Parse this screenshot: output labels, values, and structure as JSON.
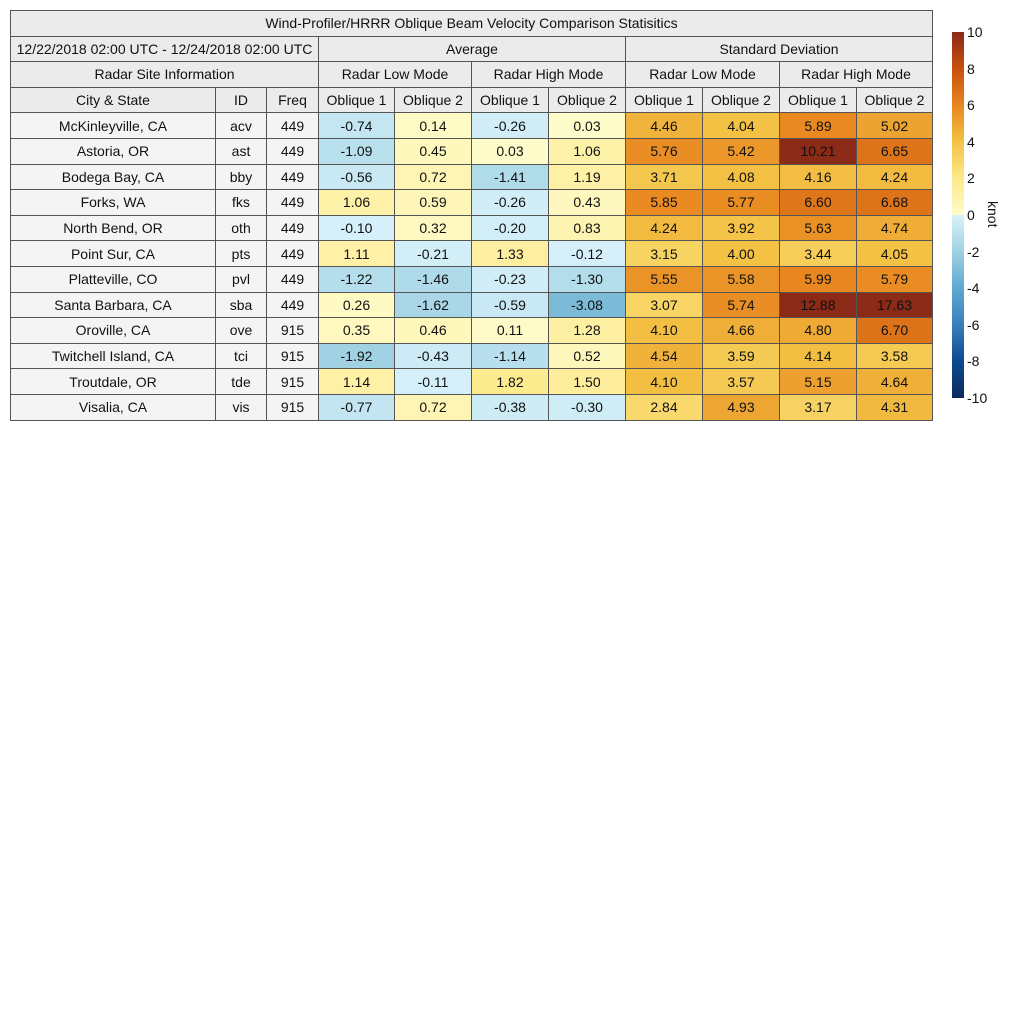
{
  "chart_data": {
    "type": "table",
    "title": "Wind-Profiler/HRRR Oblique Beam Velocity Comparison Statisitics",
    "date_range": "12/22/2018 02:00 UTC - 12/24/2018 02:00 UTC",
    "group_headers": {
      "info": "Radar Site Information",
      "average": "Average",
      "std": "Standard Deviation"
    },
    "mode_headers": [
      "Radar Low Mode",
      "Radar High Mode",
      "Radar Low Mode",
      "Radar High Mode"
    ],
    "columns": [
      "City & State",
      "ID",
      "Freq",
      "Oblique 1",
      "Oblique 2",
      "Oblique 1",
      "Oblique 2",
      "Oblique 1",
      "Oblique 2",
      "Oblique 1",
      "Oblique 2"
    ],
    "rows": [
      [
        "McKinleyville, CA",
        "acv",
        "449",
        -0.74,
        0.14,
        -0.26,
        0.03,
        4.46,
        4.04,
        5.89,
        5.02
      ],
      [
        "Astoria, OR",
        "ast",
        "449",
        -1.09,
        0.45,
        0.03,
        1.06,
        5.76,
        5.42,
        10.21,
        6.65
      ],
      [
        "Bodega Bay, CA",
        "bby",
        "449",
        -0.56,
        0.72,
        -1.41,
        1.19,
        3.71,
        4.08,
        4.16,
        4.24
      ],
      [
        "Forks, WA",
        "fks",
        "449",
        1.06,
        0.59,
        -0.26,
        0.43,
        5.85,
        5.77,
        6.6,
        6.68
      ],
      [
        "North Bend, OR",
        "oth",
        "449",
        -0.1,
        0.32,
        -0.2,
        0.83,
        4.24,
        3.92,
        5.63,
        4.74
      ],
      [
        "Point Sur, CA",
        "pts",
        "449",
        1.11,
        -0.21,
        1.33,
        -0.12,
        3.15,
        4.0,
        3.44,
        4.05
      ],
      [
        "Platteville, CO",
        "pvl",
        "449",
        -1.22,
        -1.46,
        -0.23,
        -1.3,
        5.55,
        5.58,
        5.99,
        5.79
      ],
      [
        "Santa Barbara, CA",
        "sba",
        "449",
        0.26,
        -1.62,
        -0.59,
        -3.08,
        3.07,
        5.74,
        12.88,
        17.63
      ],
      [
        "Oroville, CA",
        "ove",
        "915",
        0.35,
        0.46,
        0.11,
        1.28,
        4.1,
        4.66,
        4.8,
        6.7
      ],
      [
        "Twitchell Island, CA",
        "tci",
        "915",
        -1.92,
        -0.43,
        -1.14,
        0.52,
        4.54,
        3.59,
        4.14,
        3.58
      ],
      [
        "Troutdale, OR",
        "tde",
        "915",
        1.14,
        -0.11,
        1.82,
        1.5,
        4.1,
        3.57,
        5.15,
        4.64
      ],
      [
        "Visalia, CA",
        "vis",
        "915",
        -0.77,
        0.72,
        -0.38,
        -0.3,
        2.84,
        4.93,
        3.17,
        4.31
      ]
    ],
    "colorbar": {
      "label": "knot",
      "range": [
        -10,
        10
      ],
      "ticks": [
        "10",
        "8",
        "6",
        "4",
        "2",
        "0",
        "-2",
        "-4",
        "-6",
        "-8",
        "-10"
      ]
    },
    "colors": {
      "neg": [
        "#d8f2fb",
        "#9fd1e2",
        "#5ea8d0",
        "#3a7fbd",
        "#0b4a8f",
        "#0d2a5e"
      ],
      "pos": [
        "#fffccc",
        "#fde98a",
        "#f3c245",
        "#e8861f",
        "#c8500f",
        "#8a2a17"
      ]
    }
  }
}
